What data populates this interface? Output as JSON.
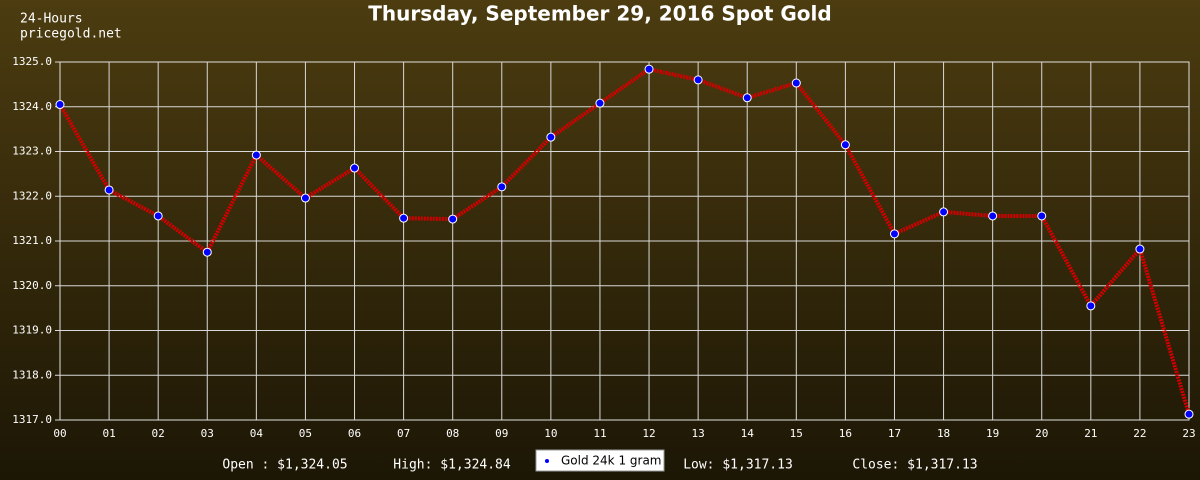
{
  "chart_data": {
    "type": "line",
    "title": "Thursday, September 29, 2016 Spot Gold",
    "brand": [
      "24-Hours",
      "pricegold.net"
    ],
    "categories": [
      "00",
      "01",
      "02",
      "03",
      "04",
      "05",
      "06",
      "07",
      "08",
      "09",
      "10",
      "11",
      "12",
      "13",
      "14",
      "15",
      "16",
      "17",
      "18",
      "19",
      "20",
      "21",
      "22",
      "23"
    ],
    "series": [
      {
        "name": "Gold 24k 1 gram",
        "color": "#d40000",
        "marker_color": "#0000ff",
        "values": [
          1324.05,
          1322.14,
          1321.56,
          1320.75,
          1322.92,
          1321.96,
          1322.63,
          1321.51,
          1321.49,
          1322.21,
          1323.32,
          1324.08,
          1324.84,
          1324.6,
          1324.2,
          1324.53,
          1323.15,
          1321.16,
          1321.65,
          1321.56,
          1321.56,
          1319.55,
          1320.82,
          1317.13
        ]
      }
    ],
    "ylim": [
      1317.0,
      1325.0
    ],
    "yticks": [
      {
        "value": 1317,
        "label": "1317.0"
      },
      {
        "value": 1318,
        "label": "1318.0"
      },
      {
        "value": 1319,
        "label": "1319.0"
      },
      {
        "value": 1320,
        "label": "1320.0"
      },
      {
        "value": 1321,
        "label": "1321.0"
      },
      {
        "value": 1322,
        "label": "1322.0"
      },
      {
        "value": 1323,
        "label": "1323.0"
      },
      {
        "value": 1324,
        "label": "1324.0"
      },
      {
        "value": 1325,
        "label": "1325.0"
      }
    ],
    "grid": true,
    "summary": [
      "Open : $1,324.05",
      "High: $1,324.84",
      "Low: $1,317.13",
      "Close: $1,317.13"
    ]
  }
}
